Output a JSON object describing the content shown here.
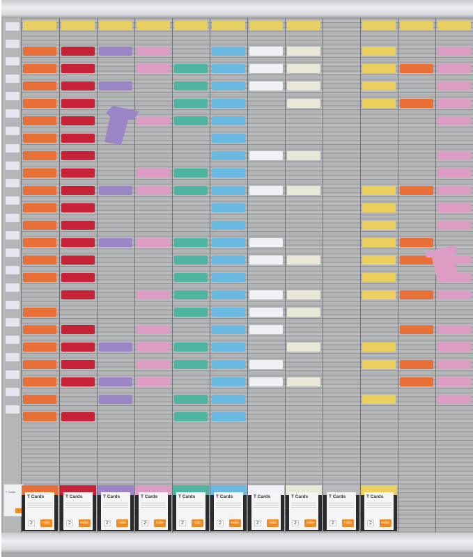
{
  "image": {
    "subject": "T-card planning board",
    "brand": "nobo",
    "columns": 12,
    "colors": {
      "board": "#a9aaac",
      "header_yellow": "#e8cf63",
      "orange": "#e86f36",
      "red": "#c82239",
      "purple": "#9a85c7",
      "pink": "#dc9cc4",
      "teal": "#4fb5a1",
      "blue": "#6ab9e3",
      "white": "#eff1f6",
      "cream": "#e9e7d5",
      "yellow": "#ecd05d",
      "logo_orange": "#f08a24"
    }
  },
  "card_boxes": [
    {
      "label": "T Cards",
      "count": "2",
      "logo": "nobo",
      "color": "#e86f36"
    },
    {
      "label": "T Cards",
      "count": "2",
      "logo": "nobo",
      "color": "#c82239"
    },
    {
      "label": "T Cards",
      "count": "2",
      "logo": "nobo",
      "color": "#9a85c7"
    },
    {
      "label": "T Cards",
      "count": "2",
      "logo": "nobo",
      "color": "#dc9cc4"
    },
    {
      "label": "T Cards",
      "count": "2",
      "logo": "nobo",
      "color": "#4fb5a1"
    },
    {
      "label": "T Cards",
      "count": "2",
      "logo": "nobo",
      "color": "#6ab9e3"
    },
    {
      "label": "T Cards",
      "count": "2",
      "logo": "nobo",
      "color": "#eff1f6"
    },
    {
      "label": "T Cards",
      "count": "2",
      "logo": "nobo",
      "color": "#e9e7d5"
    },
    {
      "label": "T Cards",
      "count": "2",
      "logo": "nobo",
      "color": "#b9babd"
    },
    {
      "label": "T Cards",
      "count": "2",
      "logo": "nobo",
      "color": "#ecd05d"
    }
  ],
  "small_box": {
    "label": "T Cards",
    "count": "1",
    "logo": "nobo"
  }
}
